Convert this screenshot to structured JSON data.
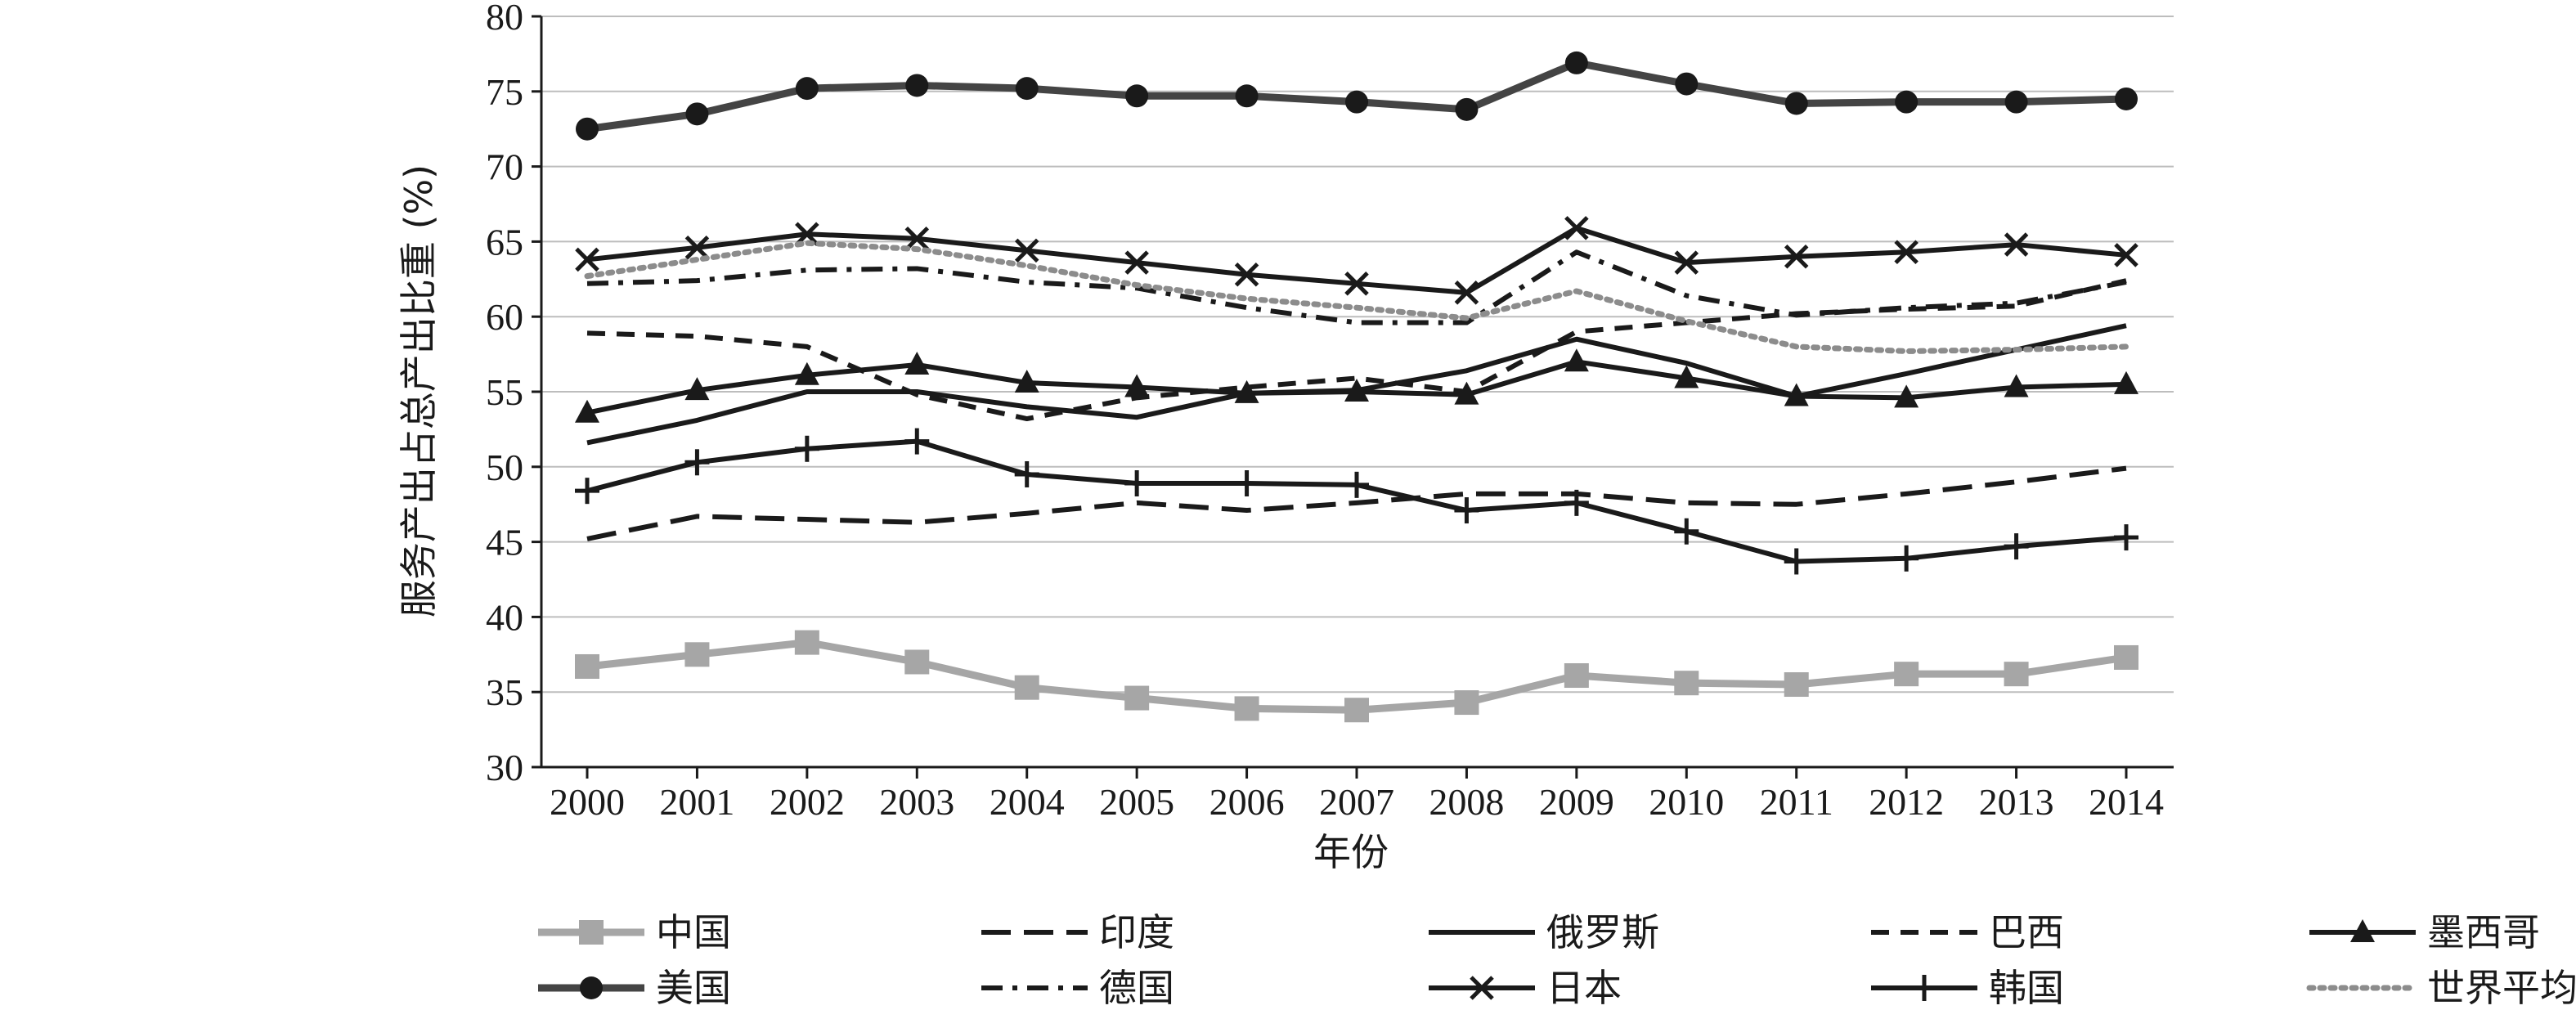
{
  "chart_data": {
    "type": "line",
    "title": "",
    "xlabel": "年份",
    "ylabel": "服务产出占总产出比重 (%)",
    "ylim": [
      30,
      80
    ],
    "yticks": [
      30,
      35,
      40,
      45,
      50,
      55,
      60,
      65,
      70,
      75,
      80
    ],
    "categories": [
      "2000",
      "2001",
      "2002",
      "2003",
      "2004",
      "2005",
      "2006",
      "2007",
      "2008",
      "2009",
      "2010",
      "2011",
      "2012",
      "2013",
      "2014"
    ],
    "grid": "horizontal",
    "legend_position": "bottom",
    "series": [
      {
        "name": "中国",
        "color": "#a6a6a6",
        "style": "solid",
        "marker": "square",
        "values": [
          36.7,
          37.5,
          38.3,
          37.0,
          35.3,
          34.6,
          33.9,
          33.8,
          34.3,
          36.1,
          35.6,
          35.5,
          36.2,
          36.2,
          37.3
        ]
      },
      {
        "name": "印度",
        "color": "#1a1a1a",
        "style": "longdash",
        "marker": "none",
        "values": [
          45.2,
          46.7,
          46.5,
          46.3,
          46.9,
          47.6,
          47.1,
          47.6,
          48.2,
          48.2,
          47.6,
          47.5,
          48.2,
          49.0,
          49.9
        ]
      },
      {
        "name": "俄罗斯",
        "color": "#1a1a1a",
        "style": "solid",
        "marker": "none",
        "values": [
          51.6,
          53.1,
          55.0,
          55.0,
          54.0,
          53.3,
          54.9,
          55.1,
          56.4,
          58.5,
          56.9,
          54.7,
          56.2,
          57.8,
          59.4
        ]
      },
      {
        "name": "巴西",
        "color": "#1a1a1a",
        "style": "dash",
        "marker": "none",
        "values": [
          58.9,
          58.7,
          58.0,
          54.8,
          53.2,
          54.6,
          55.3,
          55.9,
          55.0,
          59.0,
          59.6,
          60.2,
          60.5,
          60.7,
          62.4
        ]
      },
      {
        "name": "墨西哥",
        "color": "#1a1a1a",
        "style": "solid",
        "marker": "triangle",
        "values": [
          53.6,
          55.1,
          56.1,
          56.8,
          55.6,
          55.3,
          54.9,
          55.0,
          54.8,
          57.0,
          55.9,
          54.7,
          54.6,
          55.3,
          55.5
        ]
      },
      {
        "name": "美国",
        "color": "#444444",
        "style": "solid",
        "marker": "circle",
        "values": [
          72.5,
          73.5,
          75.2,
          75.4,
          75.2,
          74.7,
          74.7,
          74.3,
          73.8,
          76.9,
          75.5,
          74.2,
          74.3,
          74.3,
          74.5
        ]
      },
      {
        "name": "德国",
        "color": "#1a1a1a",
        "style": "dashdot",
        "marker": "none",
        "values": [
          62.2,
          62.4,
          63.1,
          63.2,
          62.3,
          61.9,
          60.6,
          59.6,
          59.6,
          64.3,
          61.4,
          60.1,
          60.6,
          60.9,
          62.3
        ]
      },
      {
        "name": "日本",
        "color": "#1a1a1a",
        "style": "solid",
        "marker": "x",
        "values": [
          63.8,
          64.6,
          65.5,
          65.2,
          64.4,
          63.6,
          62.8,
          62.2,
          61.6,
          65.9,
          63.6,
          64.0,
          64.3,
          64.8,
          64.1
        ]
      },
      {
        "name": "韩国",
        "color": "#1a1a1a",
        "style": "solid",
        "marker": "plus",
        "values": [
          48.4,
          50.3,
          51.2,
          51.7,
          49.5,
          48.9,
          48.9,
          48.8,
          47.1,
          47.6,
          45.7,
          43.7,
          43.9,
          44.7,
          45.3
        ]
      },
      {
        "name": "世界平均",
        "color": "#8c8c8c",
        "style": "dotted",
        "marker": "none",
        "values": [
          62.7,
          63.8,
          64.9,
          64.5,
          63.4,
          62.1,
          61.2,
          60.6,
          59.9,
          61.7,
          59.7,
          58.0,
          57.7,
          57.8,
          58.0
        ]
      }
    ]
  }
}
